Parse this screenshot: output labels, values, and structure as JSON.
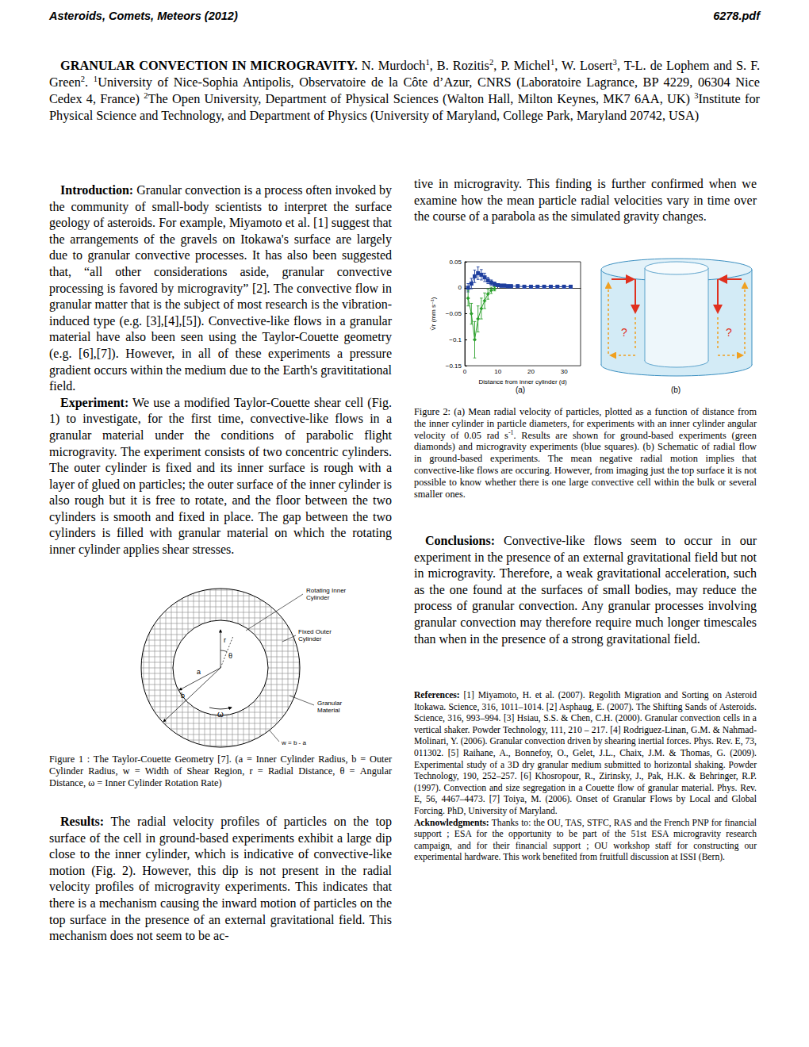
{
  "header": {
    "left": "Asteroids, Comets, Meteors (2012)",
    "right": "6278.pdf"
  },
  "title_block": [
    {
      "text": "GRANULAR CONVECTION IN MICROGRAVITY.",
      "style": "bold"
    },
    {
      "text": " N. Murdoch"
    },
    {
      "text": "1",
      "style": "sup"
    },
    {
      "text": ", B. Rozitis"
    },
    {
      "text": "2",
      "style": "sup"
    },
    {
      "text": ", P. Michel"
    },
    {
      "text": "1",
      "style": "sup"
    },
    {
      "text": ", W. Losert"
    },
    {
      "text": "3",
      "style": "sup"
    },
    {
      "text": ", T-L. de Lophem and S. F. Green"
    },
    {
      "text": "2",
      "style": "sup"
    },
    {
      "text": ". "
    },
    {
      "text": "1",
      "style": "sup"
    },
    {
      "text": "University of Nice-Sophia Antipolis, Observatoire de la Côte d’Azur, CNRS (Laboratoire Lagrance, BP 4229, 06304 Nice Cedex 4, France) "
    },
    {
      "text": "2",
      "style": "sup"
    },
    {
      "text": "The Open University, Department of Physical Sciences (Walton Hall, Milton Keynes, MK7 6AA, UK) "
    },
    {
      "text": "3",
      "style": "sup"
    },
    {
      "text": "Institute for Physical Science and Technology, and Department of Physics (University of Maryland, College Park, Maryland 20742, USA)"
    }
  ],
  "introduction": [
    {
      "text": "Introduction:",
      "style": "bold"
    },
    {
      "text": " Granular convection is a process often invoked by the community of small-body scientists to interpret the surface geology of asteroids. For example, Miyamoto et al. [1] suggest that the arrangements of the gravels on Itokawa's surface are largely due to granular convective processes. It has also been suggested that, “all other considerations aside, granular convective processing is favored by microgravity” [2]. The convective flow in granular matter that is the subject of most research is the vibration-induced type (e.g. [3],[4],[5]). Convective-like flows in a granular material have also been seen using the Taylor-Couette geometry (e.g. [6],[7]). However, in all of these experiments a pressure gradient occurs within the medium due to the Earth's gravititational field."
    }
  ],
  "experiment": [
    {
      "text": "Experiment:",
      "style": "bold"
    },
    {
      "text": " We use a modified Taylor-Couette shear cell (Fig. 1) to investigate, for the first time, convective-like flows in a granular material under the conditions of parabolic flight microgravity. The experiment consists of two concentric cylinders. The outer cylinder is fixed and its inner surface is rough with a layer of glued on particles; the outer surface of the inner cylinder is also rough but it is free to rotate, and the floor between the two cylinders is smooth and fixed in place. The gap between the two cylinders is filled with granular material on which the rotating inner cylinder applies shear stresses."
    }
  ],
  "figure1": {
    "labels": {
      "inner": [
        "Rotating Inner",
        "Cylinder"
      ],
      "outer": [
        "Fixed Outer",
        "Cylinder"
      ],
      "material": [
        "Granular",
        "Material"
      ],
      "width": [
        "w = b - a"
      ]
    },
    "symbols": {
      "a": "a",
      "b": "b",
      "r": "r",
      "theta": "θ",
      "omega": "ω"
    },
    "caption": [
      {
        "text": "Figure 1 : The Taylor-Couette Geometry [7]. (a = Inner Cylinder Radius, b = Outer Cylinder Radius, w = Width of Shear Region, r = Radial Distance, θ = Angular Distance, ω = Inner Cylinder Rotation Rate)"
      }
    ]
  },
  "results": [
    {
      "text": "Results:",
      "style": "bold"
    },
    {
      "text": " The radial velocity profiles of particles on the top surface of the cell in ground-based experiments exhibit a large dip close to the inner cylinder, which is indicative of convective-like motion (Fig. 2). However, this dip is not present in the radial velocity profiles of microgravity experiments. This indicates that there is a mechanism causing the inward motion of particles on the top surface in the presence of an external gravitational field. This mechanism does not seem to be ac-"
    }
  ],
  "results_continued": [
    {
      "text": "tive in microgravity. This finding is further confirmed when we examine how the mean particle radial velocities vary in time over the course of a parabola as the simulated gravity changes."
    }
  ],
  "figure2": {
    "panel_a": "(a)",
    "panel_b": "(b)",
    "schematic_marks": [
      "?",
      "?"
    ],
    "caption": [
      {
        "text": "Figure 2: (a) Mean radial velocity of particles, plotted as a function of distance from the inner cylinder in particle diameters, for experiments with an inner cylinder angular velocity of 0.05 rad s"
      },
      {
        "text": "-1",
        "style": "sup"
      },
      {
        "text": ". Results are shown for ground-based experiments (green diamonds) and microgravity experiments (blue squares). (b) Schematic of radial flow in ground-based experiments. The mean negative radial motion implies that convective-like flows are occuring. However, from imaging just the top surface it is not possible to know whether there is one large convective cell within the bulk or several smaller ones."
      }
    ]
  },
  "conclusions": [
    {
      "text": "Conclusions:",
      "style": "bold"
    },
    {
      "text": " Convective-like flows seem to occur in our experiment in the presence of an external gravitational field but not in microgravity. Therefore, a weak gravitational acceleration, such as the one found at the surfaces of small bodies, may reduce the process of granular convection.  Any granular processes involving granular convection may therefore require much longer timescales than when in the presence of a strong gravitational field."
    }
  ],
  "references": [
    {
      "text": "References:",
      "style": "bold"
    },
    {
      "text": " [1] Miyamoto, H. et al. (2007). Regolith Migration and Sorting on Asteroid Itokawa. Science, 316, 1011–1014. [2] Asphaug, E. (2007). The Shifting Sands of Asteroids. Science, 316, 993–994. [3] Hsiau, S.S. & Chen, C.H. (2000). Granular convection cells in a vertical shaker. Powder Technology, 111, 210 – 217. [4] Rodriguez-Linan, G.M. & Nahmad-Molinari, Y. (2006). Granular convection driven by shearing inertial forces. Phys. Rev. E, 73, 011302. [5] Raihane, A., Bonnefoy, O., Gelet, J.L., Chaix, J.M. & Thomas, G. (2009). Experimental study of a 3D dry granular medium submitted to horizontal shaking. Powder Technology, 190, 252–257. [6] Khosropour, R., Zirinsky, J., Pak, H.K. & Behringer, R.P. (1997). Convection and size segregation in a Couette flow of granular material. Phys. Rev. E, 56, 4467–4473. [7] Toiya, M. (2006). Onset of Granular Flows by Local and Global Forcing. PhD, University of Maryland."
    }
  ],
  "acknowledgments": [
    {
      "text": "Acknowledgments:",
      "style": "bold"
    },
    {
      "text": " Thanks to: the OU, TAS, STFC, RAS and the French PNP for financial support ; ESA for the opportunity to be part of the 51st ESA microgravity research campaign, and for their financial support ;  OU workshop staff for constructing our experimental hardware. This work benefited from fruitfull discussion at ISSI (Bern)."
    }
  ],
  "chart_data": {
    "type": "line",
    "x_label": "Distance from inner cylinder (d)",
    "y_label": "V̄r (mm s⁻¹)",
    "xlim": [
      0,
      35
    ],
    "xticks": [
      0,
      10,
      20,
      30
    ],
    "ylim": [
      -0.15,
      0.05
    ],
    "yticks": [
      {
        "value": -0.15,
        "label": "−0.15"
      },
      {
        "value": -0.1,
        "label": "−0.1"
      },
      {
        "value": -0.05,
        "label": "−0.05"
      },
      0,
      0.05
    ],
    "grid": false,
    "series": [
      {
        "color": "#1f3f9e",
        "marker": "square",
        "line_style": "solid",
        "x": [
          1,
          2,
          3,
          4,
          5,
          6,
          7,
          8,
          9,
          10,
          11,
          12,
          13,
          14,
          16,
          18,
          20,
          22,
          24,
          26,
          28,
          30,
          32
        ],
        "values": [
          0.0,
          0.008,
          0.022,
          0.028,
          0.025,
          0.02,
          0.014,
          0.01,
          0.007,
          0.005,
          0.004,
          0.004,
          0.003,
          0.003,
          0.003,
          0.002,
          0.002,
          0.002,
          0.002,
          0.002,
          0.002,
          0.002,
          0.002
        ],
        "errors": [
          0.008,
          0.01,
          0.012,
          0.012,
          0.01,
          0.008,
          0.006,
          0.005,
          0.004,
          0.003,
          0.003,
          0.003,
          0.003,
          0.003,
          0.003,
          0.003,
          0.003,
          0.003,
          0.003,
          0.003,
          0.003,
          0.003,
          0.003
        ]
      },
      {
        "color": "#2ca02c",
        "marker": "diamond",
        "line_style": "solid",
        "x": [
          1,
          2,
          3,
          4,
          5,
          6,
          7,
          8,
          9
        ],
        "values": [
          -0.02,
          -0.05,
          -0.1,
          -0.06,
          -0.04,
          -0.025,
          -0.012,
          -0.005,
          -0.002
        ],
        "errors": [
          0.015,
          0.02,
          0.035,
          0.025,
          0.02,
          0.015,
          0.01,
          0.006,
          0.004
        ]
      }
    ]
  }
}
